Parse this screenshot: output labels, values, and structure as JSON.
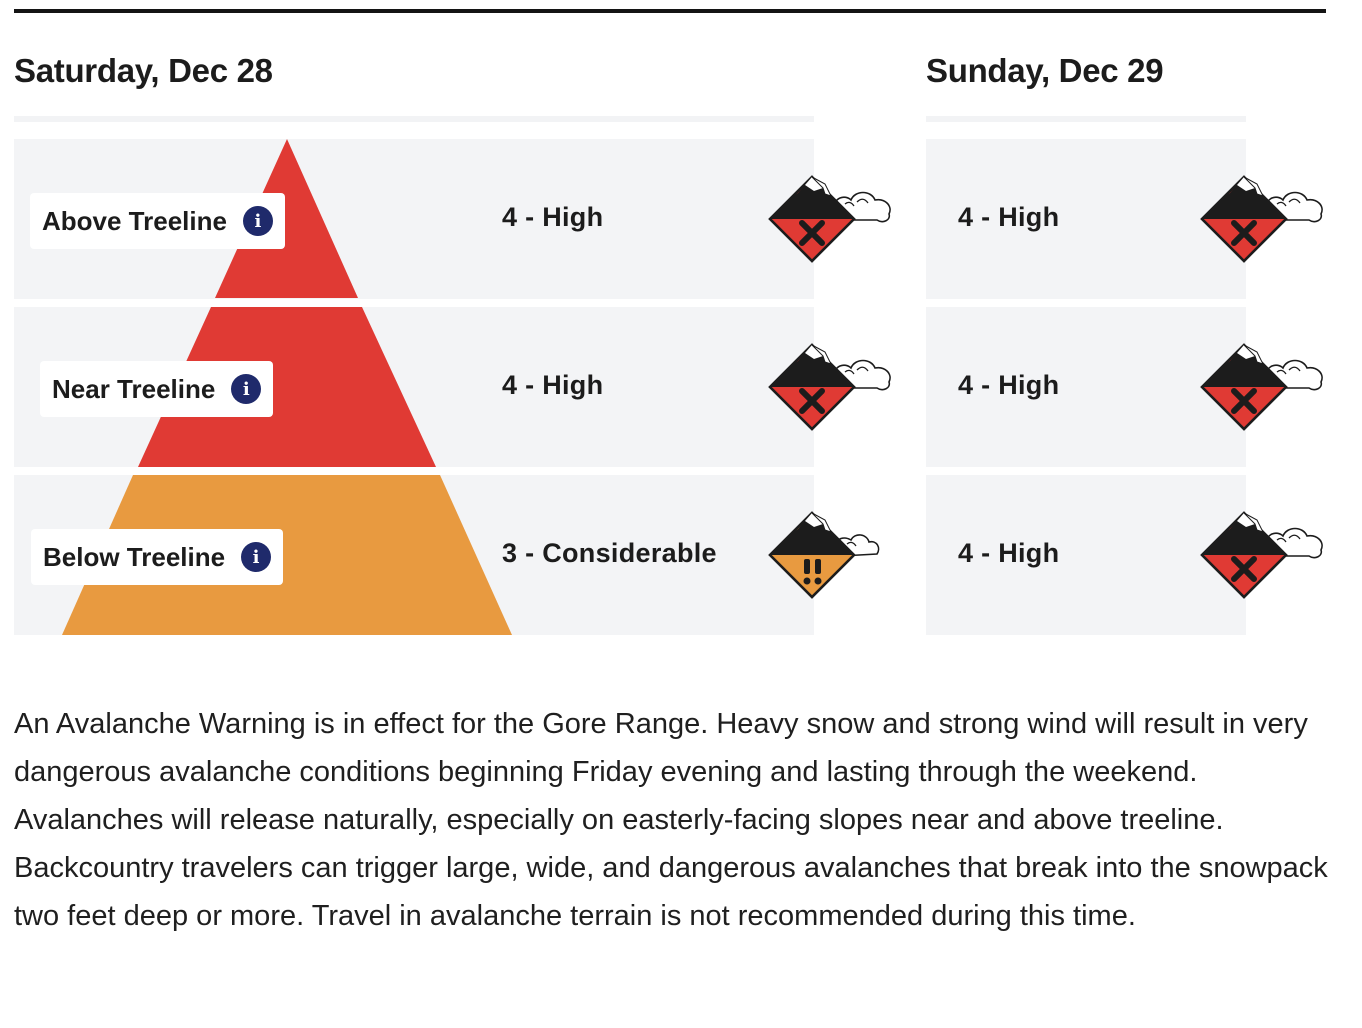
{
  "days": [
    {
      "date": "Saturday, Dec 28"
    },
    {
      "date": "Sunday, Dec 29"
    }
  ],
  "elevations": [
    {
      "label": "Above Treeline",
      "saturday": {
        "rating": "4 - High",
        "level": 4,
        "color": "#e03a34",
        "icon": "danger-high-icon"
      },
      "sunday": {
        "rating": "4 - High",
        "level": 4,
        "color": "#e03a34",
        "icon": "danger-high-icon"
      }
    },
    {
      "label": "Near Treeline",
      "saturday": {
        "rating": "4 - High",
        "level": 4,
        "color": "#e03a34",
        "icon": "danger-high-icon"
      },
      "sunday": {
        "rating": "4 - High",
        "level": 4,
        "color": "#e03a34",
        "icon": "danger-high-icon"
      }
    },
    {
      "label": "Below Treeline",
      "saturday": {
        "rating": "3 - Considerable",
        "level": 3,
        "color": "#e89a40",
        "icon": "danger-considerable-icon"
      },
      "sunday": {
        "rating": "4 - High",
        "level": 4,
        "color": "#e03a34",
        "icon": "danger-high-icon"
      }
    }
  ],
  "icons": {
    "info": "info-icon"
  },
  "colors": {
    "high": "#e03a34",
    "considerable": "#e89a40",
    "info_badge": "#1f2a6b"
  },
  "summary": "An Avalanche Warning is in effect for the Gore Range. Heavy snow and strong wind will result in very dangerous avalanche conditions beginning Friday evening and lasting through the weekend. Avalanches will release naturally, especially on easterly-facing slopes near and above treeline. Backcountry travelers can trigger large, wide, and dangerous avalanches that break into the snowpack two feet deep or more. Travel in avalanche terrain is not recommended during this time."
}
